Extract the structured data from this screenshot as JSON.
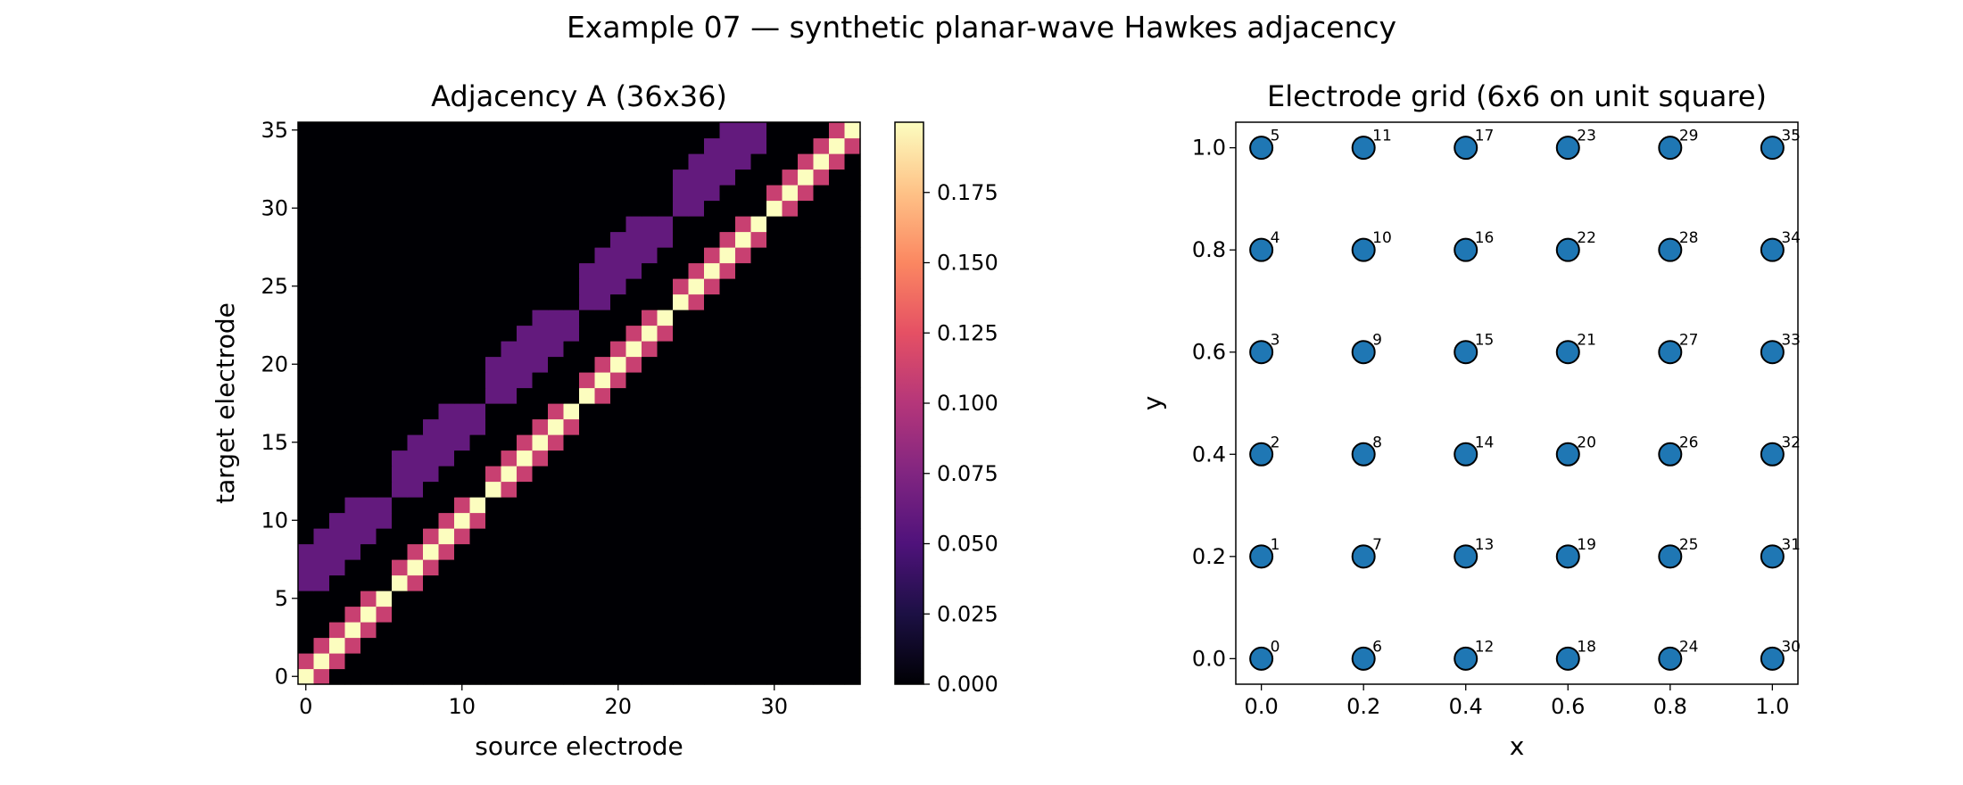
{
  "figure": {
    "suptitle": "Example 07 — synthetic planar-wave Hawkes adjacency"
  },
  "chart_data": [
    {
      "type": "heatmap",
      "title": "Adjacency A (36x36)",
      "xlabel": "source electrode",
      "ylabel": "target electrode",
      "size": 36,
      "colormap": "magma",
      "vmin": 0.0,
      "vmax": 0.2,
      "xticks": [
        0,
        10,
        20,
        30
      ],
      "yticks": [
        0,
        5,
        10,
        15,
        20,
        25,
        30,
        35
      ],
      "colorbar_ticks": [
        "0.000",
        "0.025",
        "0.050",
        "0.075",
        "0.100",
        "0.125",
        "0.150",
        "0.175"
      ],
      "colorbar_tick_values": [
        0,
        0.025,
        0.05,
        0.075,
        0.1,
        0.125,
        0.15,
        0.175
      ],
      "structure": {
        "diagonal_value": 0.2,
        "near_diagonal_value": 0.11,
        "near_diagonal_rule": "|i-j| = 1 within the same grid column of 6",
        "cross_column_value": 0.06,
        "cross_column_rule": "target column = source column + 1, row offset -1..+2",
        "background_value": 0.0
      }
    },
    {
      "type": "scatter",
      "title": "Electrode grid (6x6 on unit square)",
      "xlabel": "x",
      "ylabel": "y",
      "xlim": [
        -0.05,
        1.05
      ],
      "ylim": [
        -0.05,
        1.05
      ],
      "xticks": [
        "0.0",
        "0.2",
        "0.4",
        "0.6",
        "0.8",
        "1.0"
      ],
      "yticks": [
        "0.0",
        "0.2",
        "0.4",
        "0.6",
        "0.8",
        "1.0"
      ],
      "marker_color": "#1f77b4",
      "points": [
        {
          "id": "0",
          "x": 0.0,
          "y": 0.0
        },
        {
          "id": "1",
          "x": 0.0,
          "y": 0.2
        },
        {
          "id": "2",
          "x": 0.0,
          "y": 0.4
        },
        {
          "id": "3",
          "x": 0.0,
          "y": 0.6
        },
        {
          "id": "4",
          "x": 0.0,
          "y": 0.8
        },
        {
          "id": "5",
          "x": 0.0,
          "y": 1.0
        },
        {
          "id": "6",
          "x": 0.2,
          "y": 0.0
        },
        {
          "id": "7",
          "x": 0.2,
          "y": 0.2
        },
        {
          "id": "8",
          "x": 0.2,
          "y": 0.4
        },
        {
          "id": "9",
          "x": 0.2,
          "y": 0.6
        },
        {
          "id": "10",
          "x": 0.2,
          "y": 0.8
        },
        {
          "id": "11",
          "x": 0.2,
          "y": 1.0
        },
        {
          "id": "12",
          "x": 0.4,
          "y": 0.0
        },
        {
          "id": "13",
          "x": 0.4,
          "y": 0.2
        },
        {
          "id": "14",
          "x": 0.4,
          "y": 0.4
        },
        {
          "id": "15",
          "x": 0.4,
          "y": 0.6
        },
        {
          "id": "16",
          "x": 0.4,
          "y": 0.8
        },
        {
          "id": "17",
          "x": 0.4,
          "y": 1.0
        },
        {
          "id": "18",
          "x": 0.6,
          "y": 0.0
        },
        {
          "id": "19",
          "x": 0.6,
          "y": 0.2
        },
        {
          "id": "20",
          "x": 0.6,
          "y": 0.4
        },
        {
          "id": "21",
          "x": 0.6,
          "y": 0.6
        },
        {
          "id": "22",
          "x": 0.6,
          "y": 0.8
        },
        {
          "id": "23",
          "x": 0.6,
          "y": 1.0
        },
        {
          "id": "24",
          "x": 0.8,
          "y": 0.0
        },
        {
          "id": "25",
          "x": 0.8,
          "y": 0.2
        },
        {
          "id": "26",
          "x": 0.8,
          "y": 0.4
        },
        {
          "id": "27",
          "x": 0.8,
          "y": 0.6
        },
        {
          "id": "28",
          "x": 0.8,
          "y": 0.8
        },
        {
          "id": "29",
          "x": 0.8,
          "y": 1.0
        },
        {
          "id": "30",
          "x": 1.0,
          "y": 0.0
        },
        {
          "id": "31",
          "x": 1.0,
          "y": 0.2
        },
        {
          "id": "32",
          "x": 1.0,
          "y": 0.4
        },
        {
          "id": "33",
          "x": 1.0,
          "y": 0.6
        },
        {
          "id": "34",
          "x": 1.0,
          "y": 0.8
        },
        {
          "id": "35",
          "x": 1.0,
          "y": 1.0
        }
      ]
    }
  ]
}
